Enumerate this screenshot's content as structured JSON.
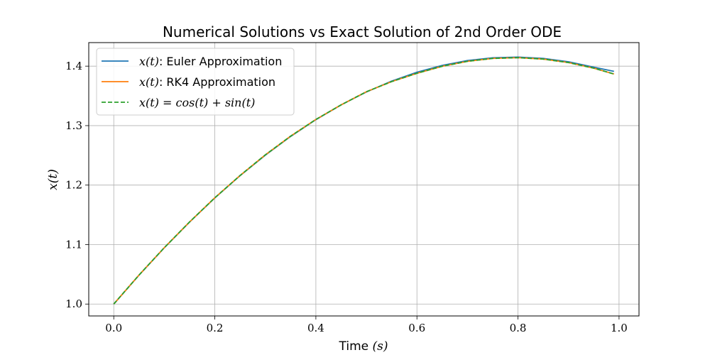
{
  "chart_data": {
    "type": "line",
    "title": "Numerical Solutions vs Exact Solution of 2nd Order ODE",
    "xlabel": {
      "prefix": "Time ",
      "math": "(s)"
    },
    "ylabel": "x(t)",
    "xlim": [
      -0.0495,
      1.0395
    ],
    "ylim": [
      0.98,
      1.4396
    ],
    "xticks": [
      0.0,
      0.2,
      0.4,
      0.6,
      0.8,
      1.0
    ],
    "xtick_labels": [
      "0.0",
      "0.2",
      "0.4",
      "0.6",
      "0.8",
      "1.0"
    ],
    "yticks": [
      1.0,
      1.1,
      1.2,
      1.3,
      1.4
    ],
    "ytick_labels": [
      "1.0",
      "1.1",
      "1.2",
      "1.3",
      "1.4"
    ],
    "grid": true,
    "legend_position": "upper-left",
    "series": [
      {
        "name": "Euler Approximation",
        "legend_math": "x(t)",
        "legend_text": ": Euler Approximation",
        "color": "#1f77b4",
        "dash": "solid",
        "x": [
          0.0,
          0.05,
          0.1,
          0.15,
          0.2,
          0.25,
          0.3,
          0.35,
          0.4,
          0.45,
          0.5,
          0.55,
          0.6,
          0.65,
          0.7,
          0.75,
          0.8,
          0.85,
          0.9,
          0.95,
          0.99
        ],
        "y": [
          1.0,
          1.0486,
          1.0946,
          1.1379,
          1.1784,
          1.2159,
          1.2504,
          1.2818,
          1.31,
          1.3349,
          1.3566,
          1.3749,
          1.3898,
          1.4013,
          1.4094,
          1.414,
          1.4152,
          1.413,
          1.4074,
          1.3983,
          1.3912
        ]
      },
      {
        "name": "RK4 Approximation",
        "legend_math": "x(t)",
        "legend_text": ": RK4 Approximation",
        "color": "#ff7f0e",
        "dash": "solid",
        "x": [
          0.0,
          0.05,
          0.1,
          0.15,
          0.2,
          0.25,
          0.3,
          0.35,
          0.4,
          0.45,
          0.5,
          0.55,
          0.6,
          0.65,
          0.7,
          0.75,
          0.8,
          0.85,
          0.9,
          0.95,
          0.99
        ],
        "y": [
          1.0,
          1.0488,
          1.0948,
          1.138,
          1.1787,
          1.2162,
          1.2509,
          1.2823,
          1.3104,
          1.3349,
          1.357,
          1.374,
          1.388,
          1.3998,
          1.4081,
          1.413,
          1.4142,
          1.4119,
          1.406,
          1.3966,
          1.3868
        ]
      },
      {
        "name": "x(t) = cos(t) + sin(t)",
        "legend_math": "x(t) = cos(t) + sin(t)",
        "legend_text": "",
        "color": "#2ca02c",
        "dash": "dashed",
        "x": [
          0.0,
          0.05,
          0.1,
          0.15,
          0.2,
          0.25,
          0.3,
          0.35,
          0.4,
          0.45,
          0.5,
          0.55,
          0.6,
          0.65,
          0.7,
          0.75,
          0.8,
          0.85,
          0.9,
          0.95,
          0.99
        ],
        "y": [
          1.0,
          1.0488,
          1.0948,
          1.138,
          1.1787,
          1.2162,
          1.2509,
          1.2823,
          1.3104,
          1.3349,
          1.357,
          1.374,
          1.388,
          1.3998,
          1.4081,
          1.413,
          1.4142,
          1.4119,
          1.406,
          1.3966,
          1.3868
        ]
      }
    ]
  }
}
